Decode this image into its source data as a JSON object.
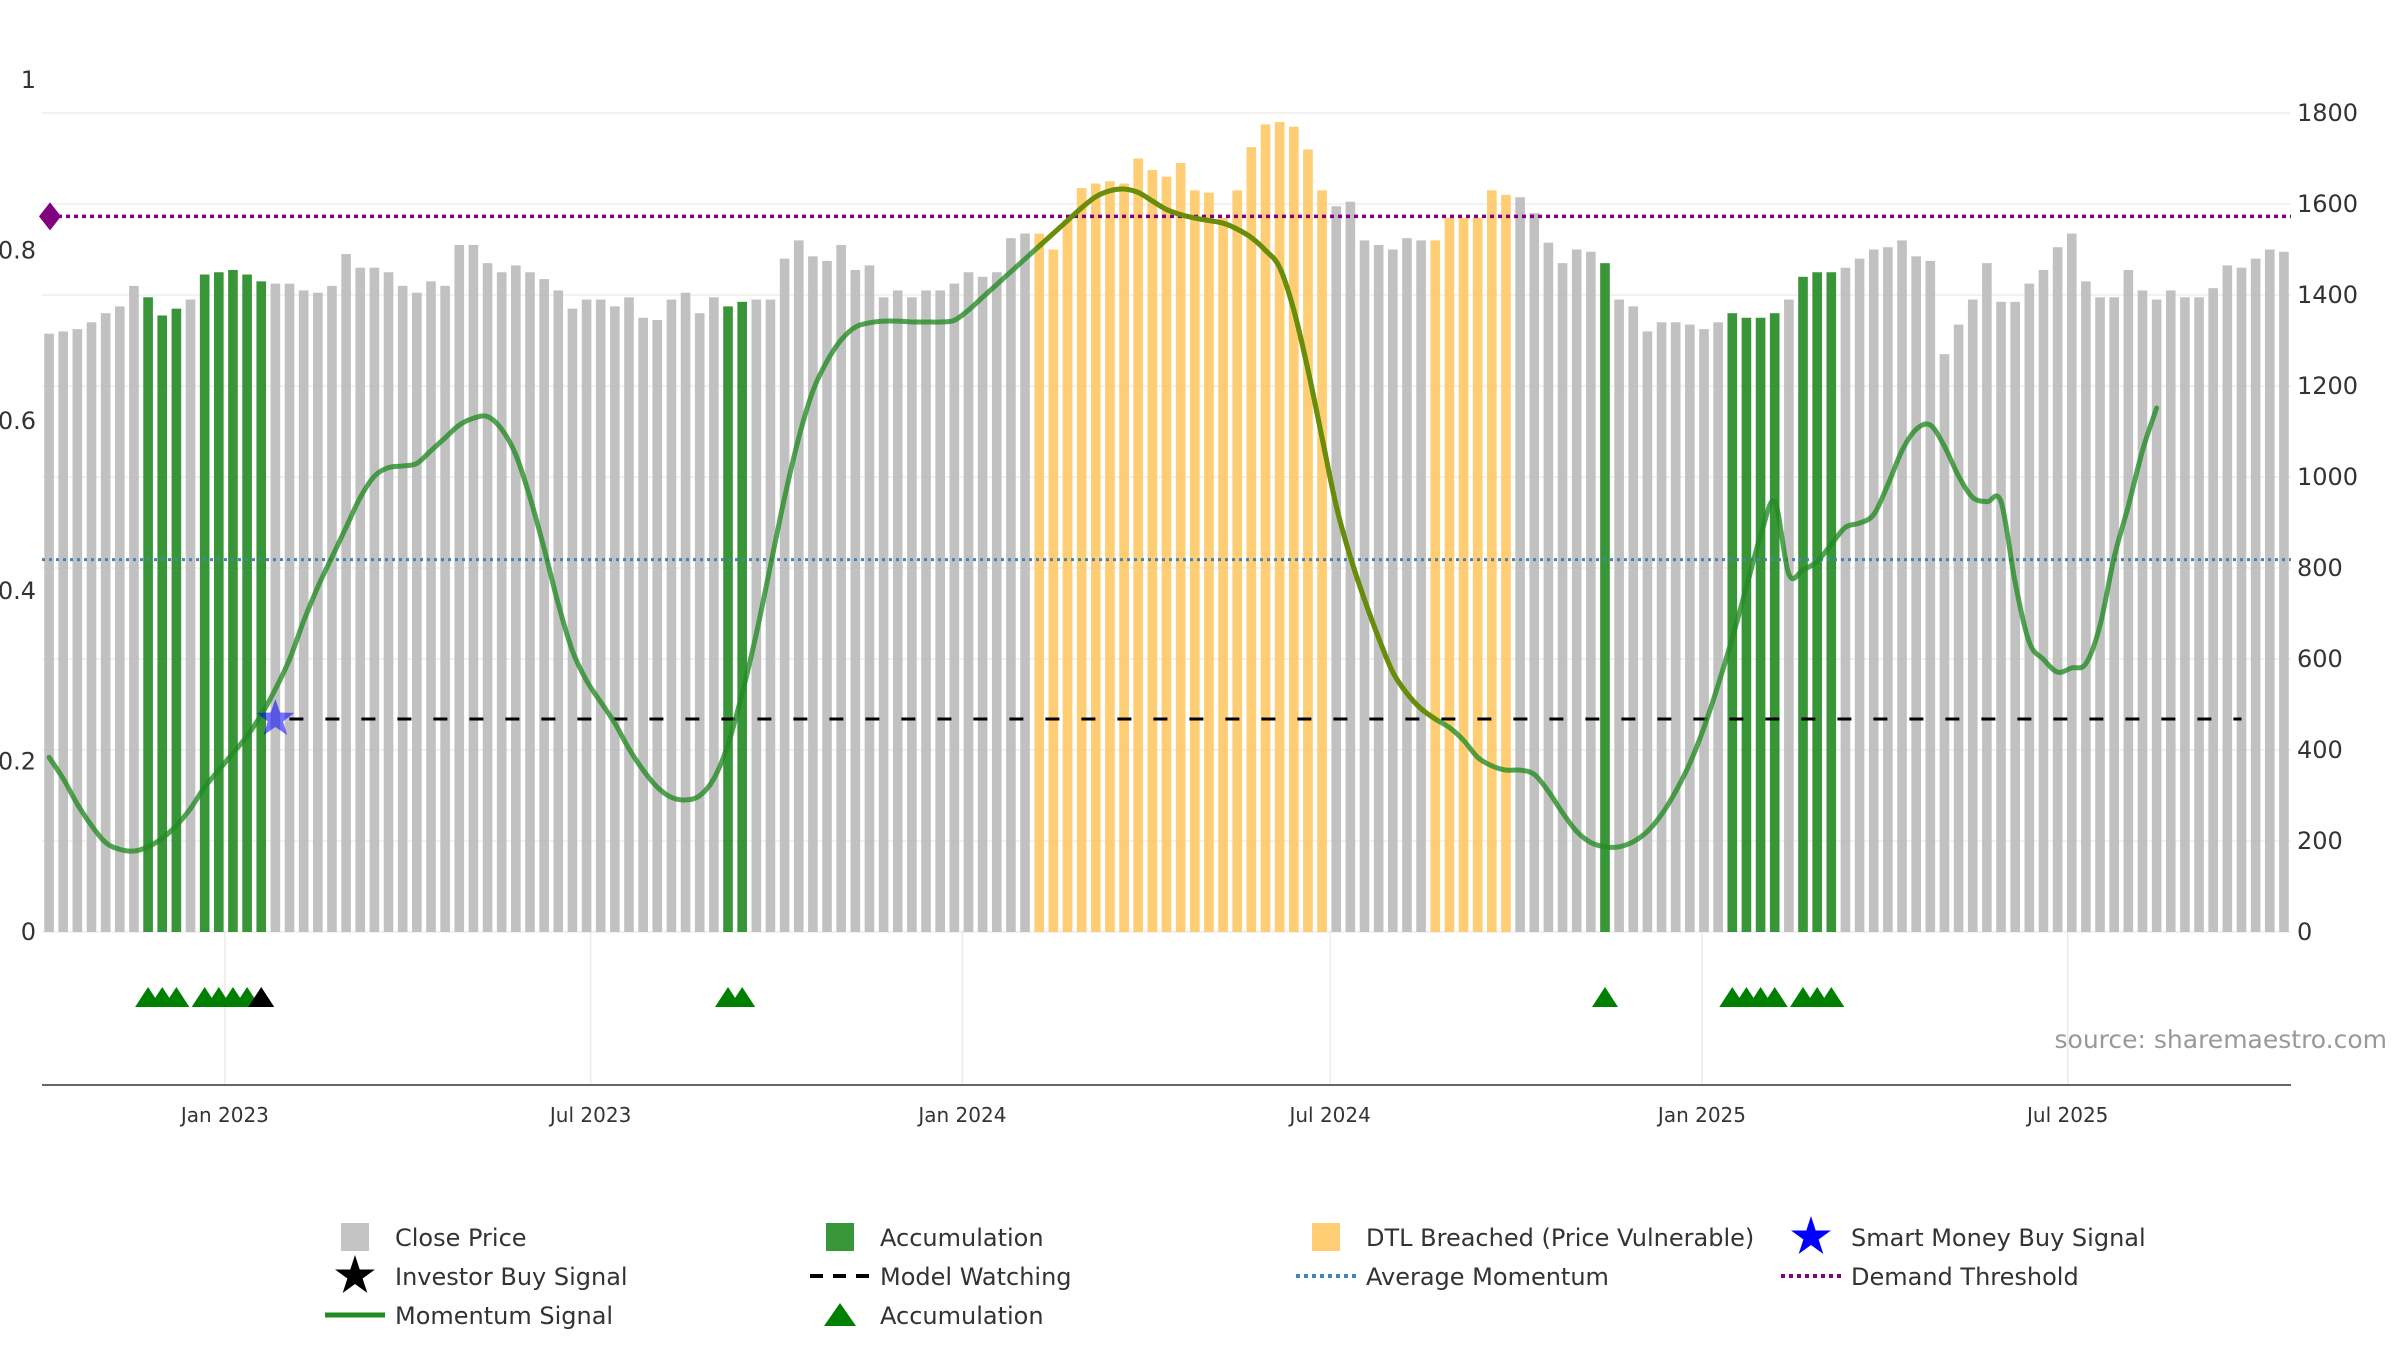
{
  "chart_data": {
    "type": "bar",
    "title": "",
    "source": "source: sharemaestro.com",
    "colors": {
      "close_price": "#bebebe",
      "accumulation": "#228b22",
      "dtl_breached": "#ffc864",
      "momentum": "#228b22",
      "momentum_dtl": "#6e8b00",
      "average_momentum": "#4682b4",
      "demand_threshold": "#800080",
      "model_watching": "#000000",
      "smart_money": "#0000ff",
      "investor_buy": "#000000",
      "accumulation_marker": "#008000",
      "grid": "#ebebeb"
    },
    "y_left": {
      "range": [
        0,
        1
      ],
      "ticks": [
        0,
        0.2,
        0.4,
        0.6,
        0.8,
        1
      ],
      "tick_labels": [
        "0",
        "0.2",
        "0.4",
        "0.6",
        "0.8",
        "1"
      ]
    },
    "y_right": {
      "range": [
        0,
        1800
      ],
      "ticks": [
        0,
        200,
        400,
        600,
        800,
        1000,
        1200,
        1400,
        1600,
        1800
      ],
      "tick_labels": [
        "0",
        "200",
        "400",
        "600",
        "800",
        "1000",
        "1200",
        "1400",
        "1600",
        "1800"
      ]
    },
    "x_axis": {
      "start": "2022-10-06",
      "step_days": 7,
      "ticks": [
        {
          "date": "2023-01-01",
          "label": "Jan 2023"
        },
        {
          "date": "2023-07-01",
          "label": "Jul 2023"
        },
        {
          "date": "2024-01-01",
          "label": "Jan 2024"
        },
        {
          "date": "2024-07-01",
          "label": "Jul 2024"
        },
        {
          "date": "2025-01-01",
          "label": "Jan 2025"
        },
        {
          "date": "2025-07-01",
          "label": "Jul 2025"
        }
      ]
    },
    "close_price": [
      1315,
      1320,
      1325,
      1340,
      1360,
      1375,
      1420,
      1395,
      1355,
      1370,
      1390,
      1445,
      1450,
      1455,
      1445,
      1430,
      1425,
      1425,
      1410,
      1405,
      1420,
      1490,
      1460,
      1460,
      1450,
      1420,
      1405,
      1430,
      1420,
      1510,
      1510,
      1470,
      1450,
      1465,
      1450,
      1435,
      1410,
      1370,
      1390,
      1390,
      1375,
      1395,
      1350,
      1345,
      1390,
      1405,
      1360,
      1395,
      1375,
      1385,
      1390,
      1390,
      1480,
      1520,
      1485,
      1475,
      1510,
      1455,
      1465,
      1395,
      1410,
      1395,
      1410,
      1410,
      1425,
      1450,
      1440,
      1450,
      1525,
      1535,
      1535,
      1500,
      1565,
      1635,
      1645,
      1650,
      1645,
      1700,
      1675,
      1660,
      1690,
      1630,
      1625,
      1570,
      1630,
      1725,
      1775,
      1780,
      1770,
      1720,
      1630,
      1595,
      1605,
      1520,
      1510,
      1500,
      1525,
      1520,
      1520,
      1570,
      1570,
      1570,
      1630,
      1620,
      1615,
      1580,
      1515,
      1470,
      1500,
      1495,
      1470,
      1390,
      1375,
      1320,
      1340,
      1340,
      1335,
      1325,
      1340,
      1360,
      1350,
      1350,
      1360,
      1390,
      1440,
      1450,
      1450,
      1460,
      1480,
      1500,
      1505,
      1520,
      1485,
      1475,
      1270,
      1335,
      1390,
      1470,
      1385,
      1385,
      1425,
      1455,
      1505,
      1535,
      1430,
      1395,
      1395,
      1455,
      1410,
      1390,
      1410,
      1395,
      1395,
      1415,
      1465,
      1460,
      1480,
      1500,
      1495
    ],
    "bar_state_runs": [
      {
        "state": "accumulation",
        "from": 7,
        "to": 9
      },
      {
        "state": "accumulation",
        "from": 11,
        "to": 15
      },
      {
        "state": "accumulation",
        "from": 48,
        "to": 49
      },
      {
        "state": "dtl_breached",
        "from": 70,
        "to": 90
      },
      {
        "state": "dtl_breached",
        "from": 98,
        "to": 103
      },
      {
        "state": "accumulation",
        "from": 110,
        "to": 110
      },
      {
        "state": "accumulation",
        "from": 119,
        "to": 122
      },
      {
        "state": "accumulation",
        "from": 124,
        "to": 126
      }
    ],
    "momentum_curve": [
      [
        0,
        0.205
      ],
      [
        1,
        0.18
      ],
      [
        2,
        0.15
      ],
      [
        3,
        0.125
      ],
      [
        4,
        0.105
      ],
      [
        5,
        0.097
      ],
      [
        6,
        0.095
      ],
      [
        7,
        0.1
      ],
      [
        8,
        0.11
      ],
      [
        9,
        0.125
      ],
      [
        10,
        0.145
      ],
      [
        11,
        0.17
      ],
      [
        12,
        0.19
      ],
      [
        13,
        0.21
      ],
      [
        14,
        0.23
      ],
      [
        15,
        0.255
      ],
      [
        16,
        0.285
      ],
      [
        17,
        0.32
      ],
      [
        18,
        0.365
      ],
      [
        19,
        0.405
      ],
      [
        20,
        0.44
      ],
      [
        21,
        0.475
      ],
      [
        22,
        0.51
      ],
      [
        23,
        0.535
      ],
      [
        24,
        0.545
      ],
      [
        25,
        0.547
      ],
      [
        26,
        0.55
      ],
      [
        27,
        0.565
      ],
      [
        28,
        0.58
      ],
      [
        29,
        0.595
      ],
      [
        30,
        0.603
      ],
      [
        31,
        0.605
      ],
      [
        32,
        0.59
      ],
      [
        33,
        0.56
      ],
      [
        34,
        0.51
      ],
      [
        35,
        0.45
      ],
      [
        36,
        0.385
      ],
      [
        37,
        0.33
      ],
      [
        38,
        0.295
      ],
      [
        39,
        0.27
      ],
      [
        40,
        0.245
      ],
      [
        41,
        0.215
      ],
      [
        42,
        0.19
      ],
      [
        43,
        0.17
      ],
      [
        44,
        0.158
      ],
      [
        45,
        0.155
      ],
      [
        46,
        0.16
      ],
      [
        47,
        0.18
      ],
      [
        48,
        0.22
      ],
      [
        49,
        0.28
      ],
      [
        50,
        0.35
      ],
      [
        51,
        0.43
      ],
      [
        52,
        0.51
      ],
      [
        53,
        0.58
      ],
      [
        54,
        0.635
      ],
      [
        55,
        0.67
      ],
      [
        56,
        0.695
      ],
      [
        57,
        0.71
      ],
      [
        58,
        0.715
      ],
      [
        59,
        0.717
      ],
      [
        60,
        0.717
      ],
      [
        61,
        0.716
      ],
      [
        62,
        0.716
      ],
      [
        63,
        0.716
      ],
      [
        64,
        0.718
      ],
      [
        65,
        0.73
      ],
      [
        66,
        0.745
      ],
      [
        67,
        0.76
      ],
      [
        68,
        0.775
      ],
      [
        69,
        0.79
      ],
      [
        70,
        0.805
      ],
      [
        71,
        0.82
      ],
      [
        72,
        0.835
      ],
      [
        73,
        0.85
      ],
      [
        74,
        0.863
      ],
      [
        75,
        0.87
      ],
      [
        76,
        0.872
      ],
      [
        77,
        0.868
      ],
      [
        78,
        0.858
      ],
      [
        79,
        0.848
      ],
      [
        80,
        0.842
      ],
      [
        81,
        0.838
      ],
      [
        82,
        0.835
      ],
      [
        83,
        0.832
      ],
      [
        84,
        0.825
      ],
      [
        85,
        0.815
      ],
      [
        86,
        0.8
      ],
      [
        87,
        0.78
      ],
      [
        88,
        0.73
      ],
      [
        89,
        0.66
      ],
      [
        90,
        0.58
      ],
      [
        91,
        0.5
      ],
      [
        92,
        0.44
      ],
      [
        93,
        0.39
      ],
      [
        94,
        0.345
      ],
      [
        95,
        0.305
      ],
      [
        96,
        0.28
      ],
      [
        97,
        0.262
      ],
      [
        98,
        0.25
      ],
      [
        99,
        0.24
      ],
      [
        100,
        0.225
      ],
      [
        101,
        0.205
      ],
      [
        102,
        0.195
      ],
      [
        103,
        0.19
      ],
      [
        104,
        0.19
      ],
      [
        105,
        0.185
      ],
      [
        106,
        0.165
      ],
      [
        107,
        0.14
      ],
      [
        108,
        0.118
      ],
      [
        109,
        0.105
      ],
      [
        110,
        0.1
      ],
      [
        111,
        0.1
      ],
      [
        112,
        0.106
      ],
      [
        113,
        0.118
      ],
      [
        114,
        0.138
      ],
      [
        115,
        0.165
      ],
      [
        116,
        0.198
      ],
      [
        117,
        0.24
      ],
      [
        118,
        0.29
      ],
      [
        119,
        0.345
      ],
      [
        120,
        0.405
      ],
      [
        121,
        0.465
      ],
      [
        122,
        0.505
      ],
      [
        123,
        0.42
      ],
      [
        124,
        0.425
      ],
      [
        125,
        0.435
      ],
      [
        126,
        0.455
      ],
      [
        127,
        0.475
      ],
      [
        128,
        0.48
      ],
      [
        129,
        0.49
      ],
      [
        130,
        0.525
      ],
      [
        131,
        0.565
      ],
      [
        132,
        0.59
      ],
      [
        133,
        0.595
      ],
      [
        134,
        0.57
      ],
      [
        135,
        0.535
      ],
      [
        136,
        0.51
      ],
      [
        137,
        0.505
      ],
      [
        138,
        0.505
      ],
      [
        139,
        0.41
      ],
      [
        140,
        0.34
      ],
      [
        141,
        0.32
      ],
      [
        142,
        0.305
      ],
      [
        143,
        0.31
      ],
      [
        144,
        0.315
      ],
      [
        145,
        0.36
      ],
      [
        146,
        0.44
      ],
      [
        147,
        0.5
      ],
      [
        148,
        0.565
      ],
      [
        149,
        0.615
      ]
    ],
    "momentum_dtl_range": [
      70,
      98
    ],
    "average_momentum": 0.437,
    "demand_threshold": 0.84,
    "model_watching": {
      "level": 0.25,
      "from": 16,
      "to": 155
    },
    "smart_money_buy": [
      {
        "x": 16,
        "y": 0.25
      }
    ],
    "investor_buy": [
      15
    ],
    "accumulation_markers": [
      7,
      8,
      9,
      11,
      12,
      13,
      14,
      48,
      49,
      110,
      119,
      120,
      121,
      122,
      124,
      125,
      126
    ],
    "legend": [
      {
        "key": "close_price",
        "label": "Close Price",
        "symbol": "square"
      },
      {
        "key": "accumulation",
        "label": "Accumulation",
        "symbol": "square"
      },
      {
        "key": "dtl_breached",
        "label": "DTL Breached (Price Vulnerable)",
        "symbol": "square"
      },
      {
        "key": "smart_money",
        "label": "Smart Money Buy Signal",
        "symbol": "star"
      },
      {
        "key": "investor_buy",
        "label": "Investor Buy Signal",
        "symbol": "star"
      },
      {
        "key": "model_watching",
        "label": "Model Watching",
        "symbol": "dash"
      },
      {
        "key": "average_momentum",
        "label": "Average Momentum",
        "symbol": "dot"
      },
      {
        "key": "demand_threshold",
        "label": "Demand Threshold",
        "symbol": "dot"
      },
      {
        "key": "momentum",
        "label": "Momentum Signal",
        "symbol": "line"
      },
      {
        "key": "accumulation_marker",
        "label": "Accumulation",
        "symbol": "triangle"
      }
    ]
  }
}
